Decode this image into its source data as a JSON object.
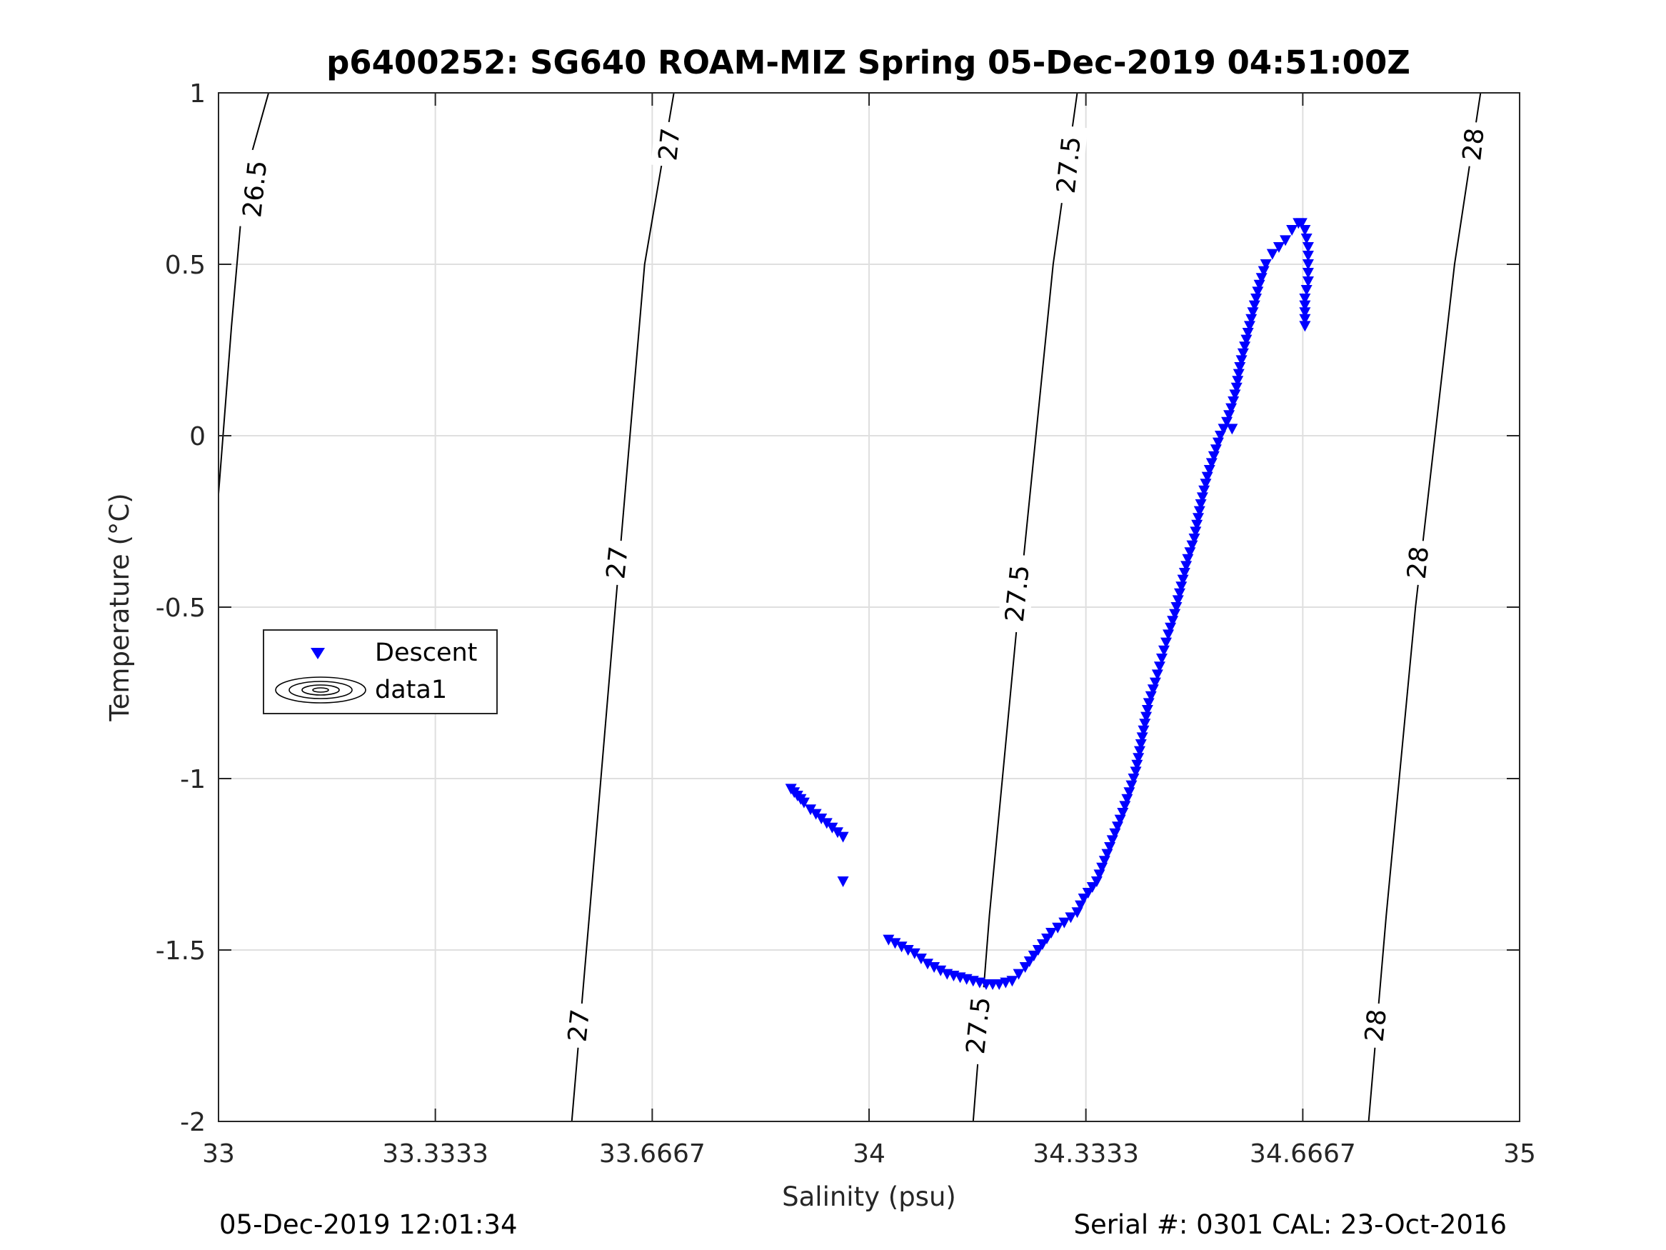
{
  "chart_data": {
    "type": "scatter",
    "title": "p6400252: SG640 ROAM-MIZ Spring 05-Dec-2019 04:51:00Z",
    "xlabel": "Salinity (psu)",
    "ylabel": "Temperature (°C)",
    "xlim": [
      33,
      35
    ],
    "ylim": [
      -2,
      1
    ],
    "x_ticks": [
      33,
      33.3333,
      33.6667,
      34,
      34.3333,
      34.6667,
      35
    ],
    "x_tick_labels": [
      "33",
      "33.3333",
      "33.6667",
      "34",
      "34.3333",
      "34.6667",
      "35"
    ],
    "y_ticks": [
      -2,
      -1.5,
      -1,
      -0.5,
      0,
      0.5,
      1
    ],
    "y_tick_labels": [
      "-2",
      "-1.5",
      "-1",
      "-0.5",
      "0",
      "0.5",
      "1"
    ],
    "grid": true,
    "legend": {
      "location": "center-left",
      "entries": [
        {
          "label": "Descent",
          "marker": "triangle-down",
          "color": "#0000ff"
        },
        {
          "label": "data1",
          "marker": "contour",
          "color": "#000000"
        }
      ]
    },
    "series": [
      {
        "name": "Descent",
        "marker": "triangle-down",
        "color": "#0000ff",
        "x": [
          33.88,
          33.885,
          33.89,
          33.895,
          33.9,
          33.91,
          33.96,
          34.03,
          34.05,
          34.07,
          34.09,
          34.12,
          34.16,
          34.18,
          34.2,
          34.22,
          34.24,
          34.26,
          34.28,
          34.3,
          34.32,
          34.33,
          34.35,
          34.37,
          34.39,
          34.41,
          34.42,
          34.43,
          34.44,
          34.45,
          34.46,
          34.47,
          34.48,
          34.49,
          34.5,
          34.51,
          34.52,
          34.53,
          34.54,
          34.55,
          34.56,
          34.565,
          34.57,
          34.58,
          34.59,
          34.6,
          34.61,
          34.62,
          34.63,
          34.64,
          34.65,
          34.66,
          34.665,
          34.67,
          34.675,
          34.675,
          34.675,
          34.67,
          34.67,
          34.67,
          34.558
        ],
        "y": [
          -1.03,
          -1.04,
          -1.05,
          -1.06,
          -1.07,
          -1.09,
          -1.17,
          -1.47,
          -1.49,
          -1.51,
          -1.54,
          -1.57,
          -1.59,
          -1.6,
          -1.6,
          -1.59,
          -1.55,
          -1.5,
          -1.45,
          -1.42,
          -1.39,
          -1.35,
          -1.3,
          -1.2,
          -1.1,
          -0.98,
          -0.88,
          -0.78,
          -0.72,
          -0.65,
          -0.58,
          -0.52,
          -0.44,
          -0.36,
          -0.3,
          -0.2,
          -0.12,
          -0.06,
          0.0,
          0.04,
          0.1,
          0.14,
          0.2,
          0.28,
          0.36,
          0.44,
          0.5,
          0.53,
          0.55,
          0.57,
          0.6,
          0.62,
          0.62,
          0.6,
          0.55,
          0.5,
          0.45,
          0.4,
          0.36,
          0.32,
          0.02
        ],
        "isolated_points": [
          {
            "x": 33.96,
            "y": -1.3
          }
        ]
      }
    ],
    "contours": [
      {
        "level": 26.5,
        "label": "26.5",
        "points": [
          [
            33.0,
            -0.17
          ],
          [
            33.02,
            0.32
          ],
          [
            33.04,
            0.75
          ],
          [
            33.077,
            1.0
          ]
        ],
        "label_positions": [
          [
            33.055,
            0.72
          ]
        ]
      },
      {
        "level": 27,
        "label": "27",
        "points": [
          [
            33.543,
            -2.0
          ],
          [
            33.57,
            -1.4
          ],
          [
            33.61,
            -0.5
          ],
          [
            33.655,
            0.5
          ],
          [
            33.7,
            1.0
          ]
        ],
        "label_positions": [
          [
            33.553,
            -1.72
          ],
          [
            33.612,
            -0.37
          ],
          [
            33.692,
            0.85
          ]
        ]
      },
      {
        "level": 27.5,
        "label": "27.5",
        "points": [
          [
            34.16,
            -2.0
          ],
          [
            34.185,
            -1.4
          ],
          [
            34.23,
            -0.5
          ],
          [
            34.283,
            0.5
          ],
          [
            34.32,
            1.0
          ]
        ],
        "label_positions": [
          [
            34.167,
            -1.72
          ],
          [
            34.227,
            -0.46
          ],
          [
            34.306,
            0.79
          ]
        ]
      },
      {
        "level": 28,
        "label": "28",
        "points": [
          [
            34.768,
            -2.0
          ],
          [
            34.795,
            -1.4
          ],
          [
            34.84,
            -0.5
          ],
          [
            34.9,
            0.5
          ],
          [
            34.94,
            1.0
          ]
        ],
        "label_positions": [
          [
            34.778,
            -1.72
          ],
          [
            34.843,
            -0.37
          ],
          [
            34.928,
            0.85
          ]
        ]
      }
    ]
  },
  "footer": {
    "left": "05-Dec-2019 12:01:34",
    "right": "Serial #: 0301  CAL: 23-Oct-2016"
  }
}
